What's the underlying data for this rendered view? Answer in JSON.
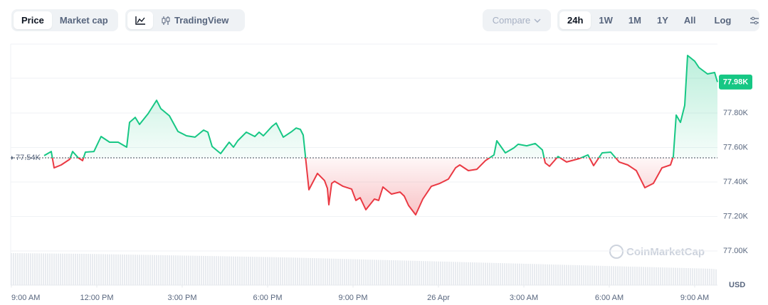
{
  "toolbar": {
    "view_tabs": [
      "Price",
      "Market cap"
    ],
    "chart_tool": "TradingView",
    "compare": "Compare",
    "ranges": [
      "24h",
      "1W",
      "1M",
      "1Y",
      "All"
    ],
    "log": "Log"
  },
  "chart_data": {
    "type": "line",
    "x": [
      1.15,
      1.4,
      1.5,
      1.75,
      2.05,
      2.15,
      2.35,
      2.5,
      2.6,
      2.9,
      3.15,
      3.45,
      3.75,
      4.05,
      4.15,
      4.35,
      4.5,
      4.8,
      5.1,
      5.25,
      5.55,
      5.85,
      6.15,
      6.45,
      6.75,
      6.9,
      7.05,
      7.35,
      7.65,
      7.8,
      7.95,
      8.25,
      8.55,
      8.7,
      8.85,
      9.15,
      9.3,
      9.55,
      9.85,
      10,
      10.15,
      10.25,
      10.45,
      10.75,
      11,
      11.1,
      11.15,
      11.25,
      11.35,
      11.65,
      11.95,
      12.1,
      12.25,
      12.45,
      12.75,
      12.9,
      13.05,
      13.35,
      13.65,
      13.8,
      13.95,
      14.2,
      14.45,
      14.75,
      15.05,
      15.35,
      15.6,
      15.75,
      16.05,
      16.35,
      16.65,
      16.95,
      17.05,
      17.35,
      17.65,
      17.8,
      18.1,
      18.4,
      18.65,
      18.75,
      18.9,
      19.2,
      19.5,
      19.95,
      20.25,
      20.45,
      20.75,
      21.05,
      21.35,
      21.65,
      21.95,
      22.25,
      22.55,
      22.85,
      23.15,
      23.25,
      23.35,
      23.5,
      23.65,
      23.75,
      24,
      24.15,
      24.45,
      24.7,
      24.8
    ],
    "values": [
      77553,
      77577,
      77482,
      77499,
      77532,
      77577,
      77540,
      77524,
      77573,
      77577,
      77664,
      77631,
      77631,
      77602,
      77746,
      77775,
      77734,
      77796,
      77874,
      77825,
      77784,
      77693,
      77668,
      77660,
      77701,
      77689,
      77606,
      77565,
      77631,
      77602,
      77639,
      77689,
      77664,
      77689,
      77668,
      77722,
      77742,
      77660,
      77693,
      77713,
      77705,
      77672,
      77355,
      77450,
      77408,
      77363,
      77268,
      77392,
      77404,
      77375,
      77359,
      77293,
      77309,
      77239,
      77301,
      77293,
      77371,
      77330,
      77342,
      77318,
      77264,
      77210,
      77301,
      77375,
      77392,
      77417,
      77482,
      77499,
      77466,
      77474,
      77524,
      77557,
      77639,
      77569,
      77598,
      77619,
      77610,
      77623,
      77586,
      77511,
      77491,
      77548,
      77516,
      77536,
      77557,
      77495,
      77569,
      77573,
      77516,
      77499,
      77466,
      77367,
      77392,
      77482,
      77499,
      77548,
      77788,
      77746,
      77845,
      78134,
      78101,
      78064,
      78027,
      78035,
      77980
    ],
    "up_color": "#16c784",
    "down_color": "#ea3943",
    "xlim": [
      0,
      24.8
    ],
    "xticks": [
      {
        "value": 0,
        "label": "9:00 AM"
      },
      {
        "value": 3,
        "label": "12:00 PM"
      },
      {
        "value": 6,
        "label": "3:00 PM"
      },
      {
        "value": 9,
        "label": "6:00 PM"
      },
      {
        "value": 12,
        "label": "9:00 PM"
      },
      {
        "value": 15,
        "label": "26 Apr"
      },
      {
        "value": 18,
        "label": "3:00 AM"
      },
      {
        "value": 21,
        "label": "6:00 AM"
      },
      {
        "value": 24,
        "label": "9:00 AM"
      }
    ],
    "ylim": [
      76800,
      78200
    ],
    "yticks": [
      {
        "value": 77000,
        "label": "77.00K"
      },
      {
        "value": 77200,
        "label": "77.20K"
      },
      {
        "value": 77400,
        "label": "77.40K"
      },
      {
        "value": 77600,
        "label": "77.60K"
      },
      {
        "value": 77800,
        "label": "77.80K"
      }
    ],
    "grid": true,
    "baseline": {
      "value": 77540,
      "label": "77.54K"
    },
    "last_price": {
      "value": 77980,
      "label": "77.98K"
    },
    "currency": "USD",
    "watermark": "CoinMarketCap"
  }
}
